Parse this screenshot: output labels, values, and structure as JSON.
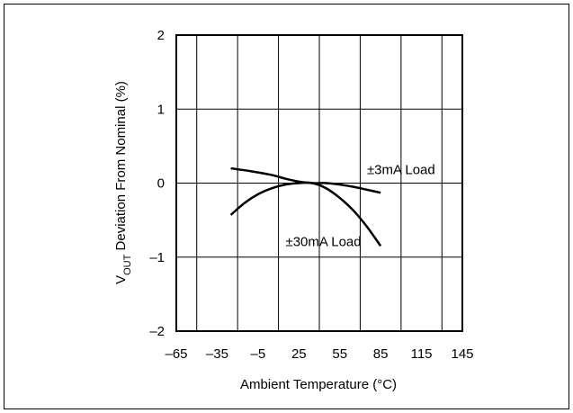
{
  "chart_data": {
    "type": "line",
    "title": "",
    "xlabel": "Ambient Temperature (°C)",
    "ylabel": {
      "prefix": "V",
      "subscript": "OUT",
      "rest": " Deviation From Nominal (%)"
    },
    "xlim": [
      -65,
      145
    ],
    "ylim": [
      -2,
      2
    ],
    "xticks": [
      -65,
      -35,
      -5,
      25,
      55,
      85,
      115,
      145
    ],
    "xtick_labels": [
      "–65",
      "–35",
      "–5",
      "25",
      "55",
      "85",
      "115",
      "145"
    ],
    "yticks": [
      -2,
      -1,
      0,
      1,
      2
    ],
    "ytick_labels": [
      "–2",
      "–1",
      "0",
      "1",
      "2"
    ],
    "x_gridlines": [
      -50,
      -20,
      10,
      40,
      70,
      100,
      130
    ],
    "y_gridlines": [
      -1,
      0,
      1
    ],
    "grid": true,
    "legend": "none",
    "series": [
      {
        "name": "±3mA Load",
        "color": "#000000",
        "x": [
          -25,
          -10,
          5,
          15,
          25,
          35,
          45,
          55,
          65,
          75,
          85
        ],
        "y": [
          0.2,
          0.16,
          0.11,
          0.06,
          0.02,
          0.0,
          0.0,
          -0.02,
          -0.05,
          -0.09,
          -0.13
        ]
      },
      {
        "name": "±30mA Load",
        "color": "#000000",
        "x": [
          -25,
          -15,
          -5,
          5,
          15,
          25,
          35,
          45,
          55,
          65,
          75,
          85
        ],
        "y": [
          -0.43,
          -0.27,
          -0.15,
          -0.07,
          -0.02,
          0.0,
          0.0,
          -0.07,
          -0.2,
          -0.37,
          -0.59,
          -0.85
        ]
      }
    ],
    "annotations": [
      {
        "text": "±3mA Load",
        "x": 100,
        "y": 0.12
      },
      {
        "text": "±30mA Load",
        "x": 43,
        "y": -0.85
      }
    ]
  }
}
